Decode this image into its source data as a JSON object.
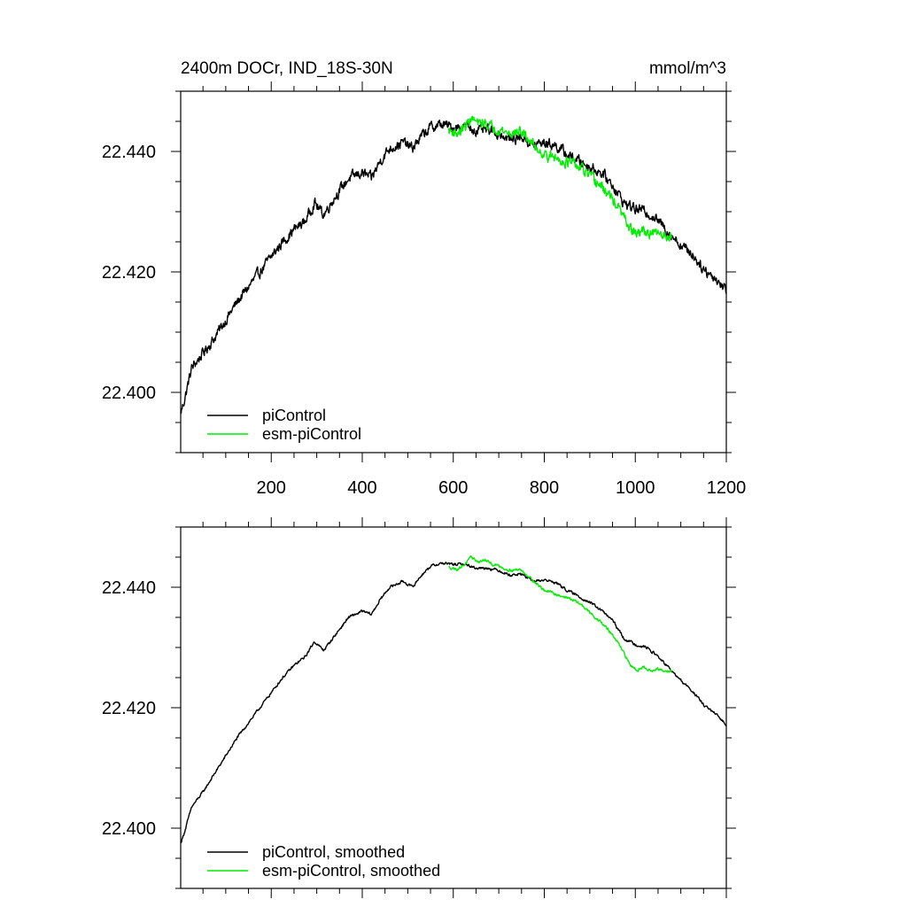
{
  "chart_data": [
    {
      "type": "line",
      "title_left": "2400m DOCr, IND_18S-30N",
      "title_right": "mmol/m^3",
      "xlim": [
        1,
        1200
      ],
      "ylim": [
        22.39,
        22.45
      ],
      "x_ticks": [
        200,
        400,
        600,
        800,
        1000,
        1200
      ],
      "x_tick_labels": [
        "200",
        "400",
        "600",
        "800",
        "1000",
        "1200"
      ],
      "y_ticks": [
        22.4,
        22.42,
        22.44
      ],
      "y_tick_labels": [
        "22.400",
        "22.420",
        "22.440"
      ],
      "series": [
        {
          "name": "piControl",
          "color": "#000000",
          "noise": 0.0007,
          "x": [
            1,
            10,
            25,
            50,
            75,
            100,
            125,
            150,
            175,
            200,
            225,
            250,
            275,
            295,
            315,
            340,
            370,
            400,
            420,
            440,
            460,
            490,
            510,
            530,
            550,
            575,
            600,
            625,
            650,
            675,
            700,
            725,
            750,
            775,
            800,
            825,
            850,
            875,
            900,
            925,
            950,
            975,
            1000,
            1025,
            1050,
            1075,
            1100,
            1125,
            1150,
            1175,
            1200
          ],
          "y": [
            22.3965,
            22.399,
            22.404,
            22.4065,
            22.409,
            22.412,
            22.415,
            22.4175,
            22.42,
            22.4225,
            22.425,
            22.427,
            22.4285,
            22.4315,
            22.4295,
            22.4325,
            22.4355,
            22.4365,
            22.4355,
            22.4385,
            22.4405,
            22.4415,
            22.4405,
            22.4425,
            22.444,
            22.4445,
            22.444,
            22.4442,
            22.4435,
            22.4435,
            22.443,
            22.442,
            22.4425,
            22.441,
            22.4415,
            22.441,
            22.4395,
            22.4385,
            22.4375,
            22.4365,
            22.4345,
            22.4315,
            22.4305,
            22.43,
            22.4285,
            22.4265,
            22.4245,
            22.423,
            22.4205,
            22.419,
            22.417
          ]
        },
        {
          "name": "esm-piControl",
          "color": "#00ee00",
          "noise": 0.0007,
          "x": [
            590,
            610,
            625,
            640,
            655,
            670,
            685,
            700,
            715,
            730,
            745,
            760,
            780,
            800,
            820,
            840,
            860,
            880,
            900,
            920,
            940,
            960,
            975,
            990,
            1005,
            1020,
            1035,
            1050,
            1065,
            1080
          ],
          "y": [
            22.4435,
            22.443,
            22.444,
            22.4455,
            22.4445,
            22.4448,
            22.444,
            22.4438,
            22.4432,
            22.443,
            22.4433,
            22.4425,
            22.4408,
            22.4395,
            22.439,
            22.4385,
            22.438,
            22.4372,
            22.4358,
            22.4345,
            22.433,
            22.431,
            22.429,
            22.427,
            22.4262,
            22.427,
            22.426,
            22.4265,
            22.426,
            22.4262
          ]
        }
      ],
      "legend": [
        "piControl",
        "esm-piControl"
      ],
      "legend_position": "bottom-left"
    },
    {
      "type": "line",
      "xlim": [
        1,
        1200
      ],
      "ylim": [
        22.39,
        22.45
      ],
      "x_ticks": [
        200,
        400,
        600,
        800,
        1000,
        1200
      ],
      "x_tick_labels": [],
      "y_ticks": [
        22.4,
        22.42,
        22.44
      ],
      "y_tick_labels": [
        "22.400",
        "22.420",
        "22.440"
      ],
      "series": [
        {
          "name": "piControl, smoothed",
          "color": "#000000",
          "noise": 0.00018,
          "x": [
            1,
            10,
            25,
            50,
            75,
            100,
            125,
            150,
            175,
            200,
            225,
            250,
            275,
            295,
            315,
            340,
            370,
            400,
            420,
            440,
            460,
            490,
            510,
            530,
            550,
            575,
            600,
            625,
            650,
            675,
            700,
            725,
            750,
            775,
            800,
            825,
            850,
            875,
            900,
            925,
            950,
            975,
            1000,
            1025,
            1050,
            1075,
            1100,
            1125,
            1150,
            1175,
            1200
          ],
          "y": [
            22.3975,
            22.3995,
            22.4035,
            22.406,
            22.409,
            22.412,
            22.415,
            22.4175,
            22.42,
            22.4225,
            22.425,
            22.427,
            22.4285,
            22.431,
            22.4295,
            22.432,
            22.435,
            22.436,
            22.4355,
            22.438,
            22.44,
            22.441,
            22.44,
            22.442,
            22.4435,
            22.444,
            22.4438,
            22.4438,
            22.4432,
            22.4432,
            22.4428,
            22.442,
            22.4422,
            22.441,
            22.4412,
            22.4408,
            22.4395,
            22.4385,
            22.4375,
            22.4362,
            22.4345,
            22.4315,
            22.4305,
            22.43,
            22.4285,
            22.4265,
            22.4245,
            22.4228,
            22.4205,
            22.419,
            22.4172
          ]
        },
        {
          "name": "esm-piControl, smoothed",
          "color": "#00ee00",
          "noise": 0.00018,
          "x": [
            590,
            610,
            625,
            640,
            655,
            670,
            685,
            700,
            715,
            730,
            745,
            760,
            780,
            800,
            820,
            840,
            860,
            880,
            900,
            920,
            940,
            960,
            975,
            990,
            1005,
            1020,
            1035,
            1050,
            1065,
            1080
          ],
          "y": [
            22.4433,
            22.443,
            22.4438,
            22.445,
            22.4442,
            22.4445,
            22.4438,
            22.4436,
            22.443,
            22.4428,
            22.443,
            22.4422,
            22.4408,
            22.4395,
            22.439,
            22.4385,
            22.438,
            22.4372,
            22.4358,
            22.4345,
            22.433,
            22.431,
            22.429,
            22.427,
            22.4263,
            22.4268,
            22.426,
            22.4264,
            22.426,
            22.4261
          ]
        }
      ],
      "legend": [
        "piControl, smoothed",
        "esm-piControl, smoothed"
      ],
      "legend_position": "bottom-left"
    }
  ]
}
